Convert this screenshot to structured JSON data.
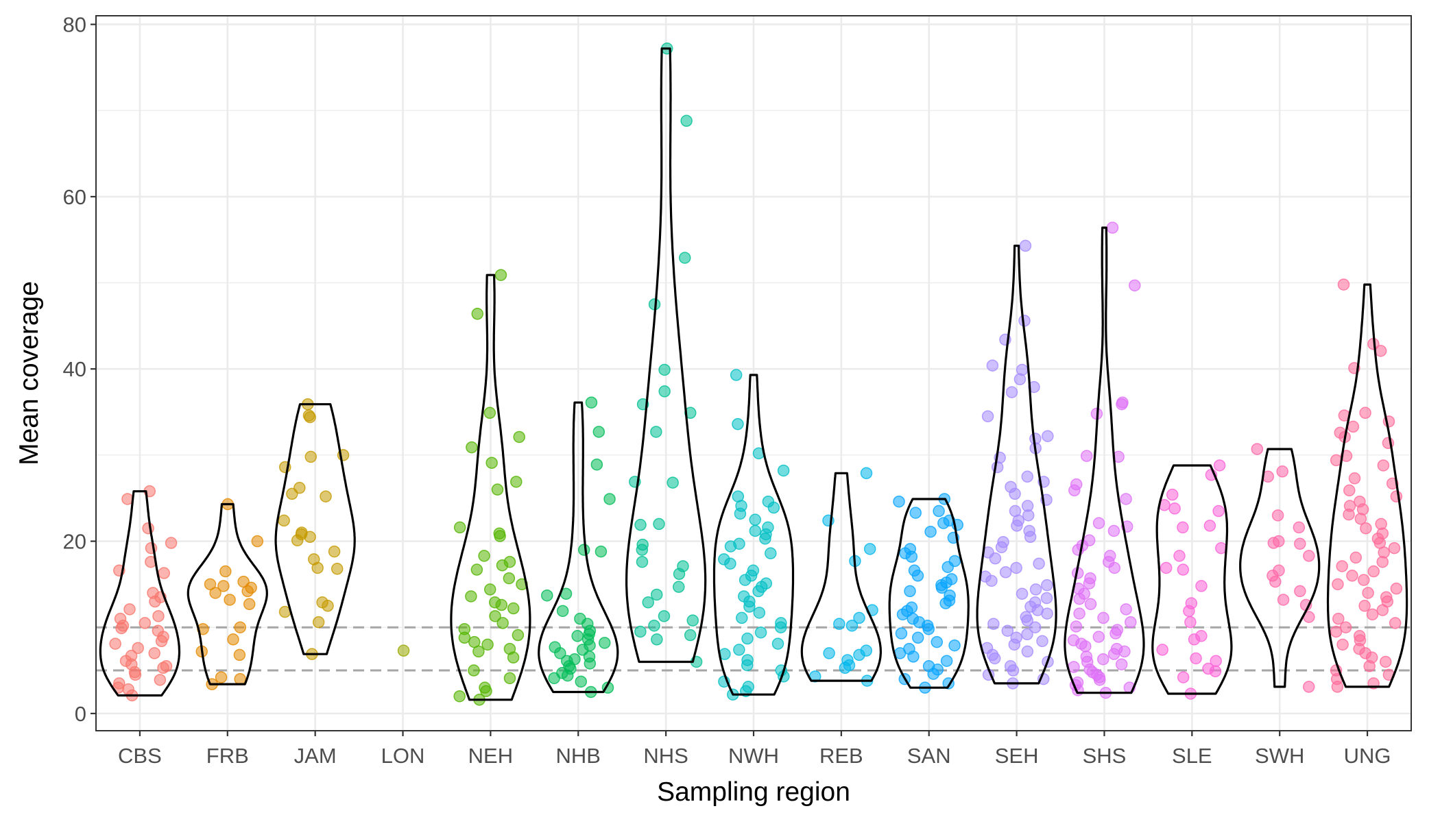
{
  "chart_data": {
    "type": "violin",
    "xlabel": "Sampling region",
    "ylabel": "Mean coverage",
    "ylim": [
      -2,
      81
    ],
    "yticks": [
      0,
      20,
      40,
      60,
      80
    ],
    "grid": true,
    "reference_lines": [
      5,
      10
    ],
    "categories": [
      "CBS",
      "FRB",
      "JAM",
      "LON",
      "NEH",
      "NHB",
      "NHS",
      "NWH",
      "REB",
      "SAN",
      "SEH",
      "SHS",
      "SLE",
      "SWH",
      "UNG"
    ],
    "colors": {
      "CBS": "#F8766D",
      "FRB": "#E38900",
      "JAM": "#C49A00",
      "LON": "#99A800",
      "NEH": "#53B400",
      "NHB": "#00BC56",
      "NHS": "#00C094",
      "NWH": "#00BFC4",
      "REB": "#00B6EB",
      "SAN": "#06A4FF",
      "SEH": "#A58AFF",
      "SHS": "#DF70F8",
      "SLE": "#FB61D7",
      "SWH": "#FF66A8",
      "UNG": "#FF6A98"
    },
    "groups": [
      {
        "name": "CBS",
        "min": 2.1,
        "max": 25.8,
        "points": [
          25.8,
          24.9,
          21.5,
          19.8,
          19.2,
          17.6,
          16.6,
          16.3,
          14.0,
          13.5,
          13.0,
          12.1,
          11.3,
          11.0,
          10.5,
          10.2,
          9.9,
          9.6,
          8.9,
          8.4,
          8.1,
          7.6,
          7.0,
          6.7,
          6.1,
          5.7,
          5.5,
          5.3,
          4.8,
          4.5,
          3.9,
          3.5,
          3.0,
          2.8,
          2.1
        ]
      },
      {
        "name": "FRB",
        "min": 3.4,
        "max": 24.3,
        "points": [
          24.3,
          20.0,
          16.5,
          15.3,
          15.0,
          14.8,
          14.6,
          14.2,
          14.0,
          13.2,
          12.7,
          10.0,
          9.8,
          8.6,
          7.2,
          6.8,
          4.2,
          4.0,
          3.4
        ]
      },
      {
        "name": "JAM",
        "min": 6.9,
        "max": 35.9,
        "points": [
          35.9,
          34.6,
          34.4,
          30.0,
          29.8,
          28.6,
          26.2,
          25.5,
          25.2,
          22.4,
          21.0,
          20.8,
          20.5,
          20.1,
          18.8,
          17.9,
          16.9,
          16.8,
          12.9,
          12.5,
          11.8,
          10.6,
          6.9
        ]
      },
      {
        "name": "LON",
        "min": 7.3,
        "max": 7.3,
        "points": [
          7.3
        ]
      },
      {
        "name": "NEH",
        "min": 1.6,
        "max": 50.9,
        "points": [
          50.9,
          46.4,
          34.9,
          32.1,
          30.9,
          29.1,
          26.9,
          26.0,
          21.6,
          20.9,
          20.6,
          18.3,
          17.6,
          17.2,
          16.7,
          15.7,
          15.0,
          14.4,
          13.6,
          12.9,
          12.6,
          12.2,
          11.3,
          10.5,
          9.8,
          9.1,
          8.8,
          8.3,
          8.0,
          7.5,
          7.2,
          6.5,
          5.0,
          4.1,
          3.0,
          2.6,
          2.0,
          1.6
        ]
      },
      {
        "name": "NHB",
        "min": 2.5,
        "max": 36.1,
        "points": [
          36.1,
          32.7,
          28.9,
          24.9,
          19.0,
          18.8,
          13.9,
          13.7,
          11.9,
          11.0,
          10.4,
          9.6,
          9.2,
          9.0,
          8.6,
          8.2,
          7.9,
          7.7,
          7.4,
          7.0,
          6.6,
          6.3,
          6.1,
          5.8,
          5.5,
          5.2,
          4.7,
          4.4,
          4.1,
          3.7,
          3.0,
          2.5
        ]
      },
      {
        "name": "NHS",
        "min": 6.0,
        "max": 77.2,
        "points": [
          77.2,
          68.8,
          52.9,
          47.5,
          39.9,
          37.4,
          35.9,
          34.9,
          32.7,
          26.9,
          26.8,
          22.0,
          21.9,
          19.6,
          19.0,
          17.6,
          17.1,
          16.2,
          14.7,
          13.8,
          12.9,
          11.3,
          10.8,
          10.2,
          9.5,
          9.1,
          8.6,
          6.0
        ]
      },
      {
        "name": "NWH",
        "min": 2.2,
        "max": 39.3,
        "points": [
          39.3,
          33.6,
          30.2,
          28.2,
          25.2,
          24.6,
          24.1,
          23.9,
          23.2,
          22.5,
          21.6,
          21.2,
          20.8,
          20.3,
          19.7,
          19.4,
          18.6,
          17.9,
          17.4,
          16.6,
          16.0,
          15.5,
          15.1,
          14.7,
          14.2,
          13.6,
          13.0,
          12.4,
          11.7,
          11.1,
          10.5,
          10.0,
          9.4,
          8.7,
          8.1,
          7.4,
          6.9,
          6.2,
          5.6,
          5.0,
          4.3,
          3.7,
          3.1,
          2.6,
          2.2
        ]
      },
      {
        "name": "REB",
        "min": 3.8,
        "max": 27.9,
        "points": [
          27.9,
          22.4,
          19.1,
          17.7,
          12.0,
          11.1,
          10.4,
          10.2,
          7.3,
          7.0,
          6.8,
          6.2,
          5.6,
          5.3,
          4.3,
          3.8
        ]
      },
      {
        "name": "SAN",
        "min": 3.0,
        "max": 24.9,
        "points": [
          24.9,
          24.6,
          23.5,
          23.3,
          22.4,
          22.1,
          21.9,
          21.1,
          20.4,
          19.1,
          18.6,
          18.2,
          17.7,
          17.0,
          16.6,
          16.0,
          15.6,
          15.2,
          14.9,
          14.6,
          14.2,
          13.7,
          13.1,
          12.8,
          12.3,
          11.9,
          11.5,
          11.0,
          10.6,
          10.2,
          9.8,
          9.3,
          8.8,
          8.3,
          7.9,
          7.5,
          7.0,
          6.6,
          6.1,
          5.5,
          5.1,
          4.6,
          4.0,
          3.5,
          3.0
        ]
      },
      {
        "name": "SEH",
        "min": 3.5,
        "max": 54.3,
        "points": [
          54.3,
          45.6,
          43.4,
          40.4,
          39.9,
          38.8,
          37.9,
          37.3,
          34.5,
          32.2,
          31.9,
          30.8,
          29.7,
          28.6,
          27.5,
          26.9,
          26.3,
          25.5,
          24.8,
          24.1,
          23.5,
          23.0,
          22.4,
          21.8,
          21.2,
          20.5,
          19.9,
          19.3,
          18.7,
          18.0,
          17.4,
          16.9,
          16.4,
          15.9,
          15.4,
          14.9,
          14.4,
          13.9,
          13.4,
          12.9,
          12.4,
          12.0,
          11.6,
          11.2,
          10.8,
          10.4,
          10.0,
          9.6,
          9.2,
          8.8,
          8.4,
          8.0,
          7.6,
          7.2,
          6.8,
          6.4,
          6.0,
          5.5,
          5.0,
          4.5,
          4.0,
          3.5
        ]
      },
      {
        "name": "SHS",
        "min": 2.4,
        "max": 56.4,
        "points": [
          56.4,
          49.7,
          36.1,
          35.9,
          34.8,
          29.9,
          29.8,
          26.6,
          25.9,
          24.9,
          22.1,
          21.7,
          21.2,
          20.1,
          19.5,
          19.0,
          18.3,
          17.6,
          16.9,
          16.3,
          15.7,
          15.1,
          14.5,
          13.9,
          13.3,
          12.7,
          12.1,
          11.6,
          11.1,
          10.6,
          10.1,
          9.7,
          9.3,
          8.9,
          8.5,
          8.1,
          7.8,
          7.5,
          7.2,
          6.9,
          6.6,
          6.3,
          6.0,
          5.7,
          5.4,
          5.1,
          4.8,
          4.5,
          4.2,
          3.9,
          3.6,
          3.3,
          3.0,
          2.7,
          2.4
        ]
      },
      {
        "name": "SLE",
        "min": 2.3,
        "max": 28.8,
        "points": [
          28.8,
          27.7,
          25.4,
          24.2,
          23.8,
          23.5,
          21.8,
          21.6,
          19.2,
          18.3,
          16.9,
          16.7,
          14.8,
          12.8,
          11.9,
          10.6,
          9.0,
          8.6,
          7.4,
          6.4,
          6.1,
          5.2,
          4.9,
          4.2,
          2.3
        ]
      },
      {
        "name": "SWH",
        "min": 3.1,
        "max": 30.7,
        "points": [
          30.7,
          28.1,
          27.5,
          23.0,
          21.6,
          20.0,
          19.8,
          19.7,
          18.3,
          16.6,
          16.0,
          15.3,
          14.2,
          13.2,
          12.6,
          11.2,
          3.1
        ]
      },
      {
        "name": "UNG",
        "min": 3.1,
        "max": 49.8,
        "points": [
          49.8,
          42.9,
          42.1,
          40.1,
          34.9,
          34.6,
          33.9,
          33.3,
          32.6,
          32.1,
          31.4,
          29.9,
          29.4,
          28.8,
          27.3,
          26.7,
          25.9,
          25.2,
          24.6,
          24.1,
          23.7,
          23.1,
          22.6,
          22.0,
          21.5,
          20.9,
          20.3,
          19.8,
          19.2,
          18.7,
          18.1,
          17.6,
          17.1,
          16.5,
          16.0,
          15.5,
          15.0,
          14.5,
          14.0,
          13.5,
          13.0,
          12.5,
          12.0,
          11.5,
          11.0,
          10.5,
          10.0,
          9.5,
          9.0,
          8.5,
          8.0,
          7.5,
          7.0,
          6.5,
          6.0,
          5.5,
          5.0,
          4.5,
          4.0,
          3.5,
          3.1
        ]
      }
    ]
  }
}
